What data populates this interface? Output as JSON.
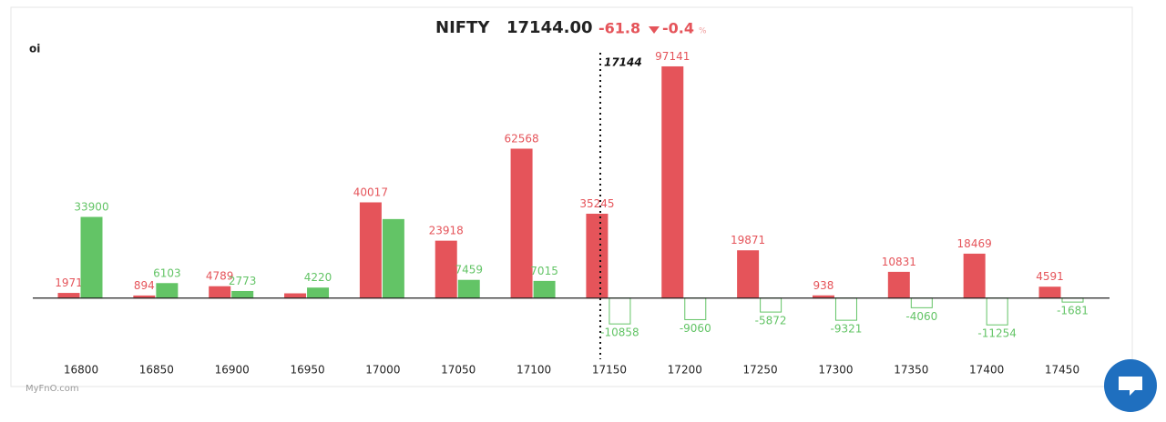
{
  "chart_data": {
    "type": "bar",
    "title": "NIFTY",
    "price": "17144.00",
    "change": "-61.8",
    "change_pct": "-0.4",
    "pct_unit": "%",
    "y_label": "oi",
    "watermark": "MyFnO.com",
    "categories": [
      "16800",
      "16850",
      "16900",
      "16950",
      "17000",
      "17050",
      "17100",
      "17150",
      "17200",
      "17250",
      "17300",
      "17350",
      "17400",
      "17450"
    ],
    "x": [
      16800,
      16850,
      16900,
      16950,
      17000,
      17050,
      17100,
      17150,
      17200,
      17250,
      17300,
      17350,
      17400,
      17450
    ],
    "series": [
      {
        "color": "#e5545a",
        "values": [
          1971,
          894,
          4789,
          1800,
          40017,
          23918,
          62568,
          35245,
          97141,
          19871,
          938,
          10831,
          18469,
          4591
        ],
        "value_labels": [
          "1971",
          "894",
          "4789",
          null,
          "40017",
          "23918",
          "62568",
          "35245",
          "97141",
          "19871",
          "938",
          "10831",
          "18469",
          "4591"
        ]
      },
      {
        "color": "#63c466",
        "values": [
          33900,
          6103,
          2773,
          4220,
          33000,
          7459,
          7015,
          -10858,
          -9060,
          -5872,
          -9321,
          -4060,
          -11254,
          -1681
        ],
        "value_labels": [
          "33900",
          "6103",
          "2773",
          "4220",
          null,
          "7459",
          "7015",
          "-10858",
          "-9060",
          "-5872",
          "-9321",
          "-4060",
          "-11254",
          "-1681"
        ]
      }
    ],
    "spot_line": {
      "value": 17144,
      "label": "17144"
    },
    "ylim": [
      -15000,
      100000
    ]
  }
}
